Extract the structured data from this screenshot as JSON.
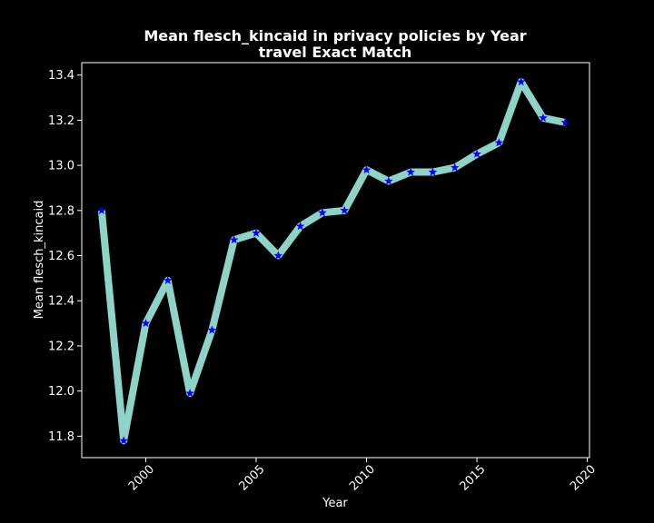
{
  "chart_data": {
    "type": "line",
    "title": "Mean flesch_kincaid in privacy policies by Year",
    "subtitle": "travel Exact Match",
    "xlabel": "Year",
    "ylabel": "Mean flesch_kincaid",
    "xlim": [
      1997.1,
      2020.1
    ],
    "ylim": [
      11.705,
      13.455
    ],
    "x_ticks": [
      2000,
      2005,
      2010,
      2015,
      2020
    ],
    "y_ticks": [
      11.8,
      12.0,
      12.2,
      12.4,
      12.6,
      12.8,
      13.0,
      13.2,
      13.4
    ],
    "x_tick_labels": [
      "2000",
      "2005",
      "2010",
      "2015",
      "2020"
    ],
    "y_tick_labels": [
      "11.8",
      "12.0",
      "12.2",
      "12.4",
      "12.6",
      "12.8",
      "13.0",
      "13.2",
      "13.4"
    ],
    "grid": false,
    "colors": {
      "background": "#000000",
      "axes": "#ffffff",
      "line": "#8dd3c7",
      "marker": "#0000ff"
    },
    "series": [
      {
        "marker": "star",
        "x": [
          1998,
          1999,
          2000,
          2001,
          2002,
          2003,
          2004,
          2005,
          2006,
          2007,
          2008,
          2009,
          2010,
          2011,
          2012,
          2013,
          2014,
          2015,
          2016,
          2017,
          2018,
          2019
        ],
        "y": [
          12.8,
          11.78,
          12.3,
          12.49,
          11.99,
          12.27,
          12.67,
          12.7,
          12.6,
          12.73,
          12.79,
          12.8,
          12.98,
          12.93,
          12.97,
          12.97,
          12.99,
          13.05,
          13.1,
          13.37,
          13.21,
          13.19
        ]
      }
    ]
  }
}
